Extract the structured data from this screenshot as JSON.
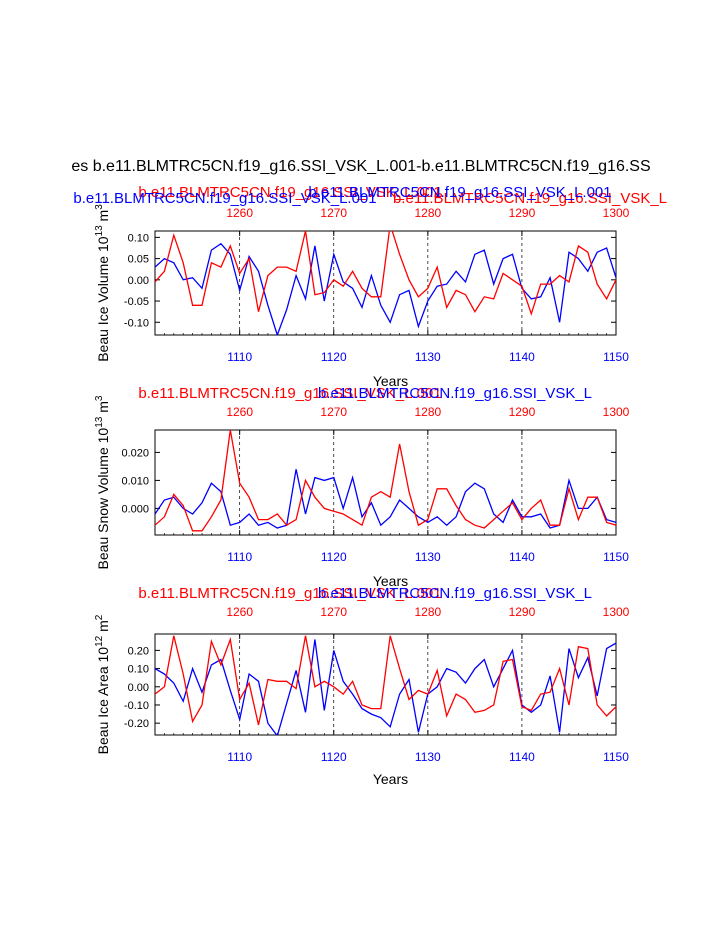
{
  "figure_title": "es b.e11.BLMTRC5CN.f19_g16.SSI_VSK_L.001-b.e11.BLMTRC5CN.f19_g16.SS",
  "colors": {
    "series_a": "#0000ff",
    "series_b": "#ff0000",
    "axis": "#000000",
    "grid": "#000000"
  },
  "chart_data": [
    {
      "type": "line",
      "title": "",
      "header_left": "b.e11.BLMTRC5CN.f19_g16.SSI_VSK_L.001",
      "header_right": "b.e11.BLMTRC5CN.f19_g16.SSI_VSK_L",
      "header_center_a": "b.e11.BLMTRC5CN.f19_g16.SSI_VSK_L.001",
      "header_center_b": "b.e11.BLMTRC5CN.f19_g16.SSI_VSK_L.001",
      "ylabel": "Beau Ice Volume 10",
      "ylabel_exp": "13",
      "ylabel_unit": " m",
      "ylabel_unit_exp": "3",
      "xlabel": "Years",
      "xlim": [
        1101,
        1150
      ],
      "x2lim": [
        1251,
        1300
      ],
      "ylim": [
        -0.13,
        0.115
      ],
      "xticks": [
        1110,
        1120,
        1130,
        1140,
        1150
      ],
      "xtick_labels": [
        "1110",
        "1120",
        "1130",
        "1140",
        "1150"
      ],
      "x2ticks": [
        1260,
        1270,
        1280,
        1290,
        1300
      ],
      "x2tick_labels": [
        "1260",
        "1270",
        "1280",
        "1290",
        "1300"
      ],
      "yticks": [
        0.1,
        0.05,
        0.0,
        -0.05,
        -0.1
      ],
      "ytick_labels": [
        "0.10",
        "0.05",
        "0.00",
        "-0.05",
        "-0.10"
      ],
      "gridlines_x": [
        1110,
        1120,
        1130,
        1140
      ],
      "series": [
        {
          "name": "b.e11.BLMTRC5CN.f19_g16.SSI_VSK_L.001",
          "color": "#0000ff",
          "axis": "bottom",
          "x": [
            1101,
            1102,
            1103,
            1104,
            1105,
            1106,
            1107,
            1108,
            1109,
            1110,
            1111,
            1112,
            1113,
            1114,
            1115,
            1116,
            1117,
            1118,
            1119,
            1120,
            1121,
            1122,
            1123,
            1124,
            1125,
            1126,
            1127,
            1128,
            1129,
            1130,
            1131,
            1132,
            1133,
            1134,
            1135,
            1136,
            1137,
            1138,
            1139,
            1140,
            1141,
            1142,
            1143,
            1144,
            1145,
            1146,
            1147,
            1148,
            1149,
            1150
          ],
          "values": [
            0.03,
            0.05,
            0.04,
            0.0,
            0.005,
            -0.02,
            0.07,
            0.085,
            0.06,
            -0.025,
            0.055,
            0.02,
            -0.06,
            -0.13,
            -0.07,
            0.01,
            -0.045,
            0.08,
            -0.05,
            0.06,
            -0.005,
            -0.02,
            -0.065,
            0.01,
            -0.06,
            -0.1,
            -0.035,
            -0.025,
            -0.11,
            -0.05,
            -0.015,
            -0.01,
            0.02,
            -0.005,
            0.06,
            0.07,
            -0.01,
            0.05,
            0.06,
            -0.02,
            -0.045,
            -0.04,
            0.005,
            -0.1,
            0.065,
            0.05,
            0.02,
            0.065,
            0.075,
            0.005
          ]
        },
        {
          "name": "b.e11.BLMTRC5CN.f19_g16.SSI_VSK_L",
          "color": "#ff0000",
          "axis": "top",
          "x": [
            1251,
            1252,
            1253,
            1254,
            1255,
            1256,
            1257,
            1258,
            1259,
            1260,
            1261,
            1262,
            1263,
            1264,
            1265,
            1266,
            1267,
            1268,
            1269,
            1270,
            1271,
            1272,
            1273,
            1274,
            1275,
            1276,
            1277,
            1278,
            1279,
            1280,
            1281,
            1282,
            1283,
            1284,
            1285,
            1286,
            1287,
            1288,
            1289,
            1290,
            1291,
            1292,
            1293,
            1294,
            1295,
            1296,
            1297,
            1298,
            1299,
            1300
          ],
          "values": [
            -0.005,
            0.02,
            0.105,
            0.04,
            -0.06,
            -0.06,
            0.04,
            0.03,
            0.08,
            0.015,
            0.05,
            -0.075,
            0.01,
            0.03,
            0.03,
            0.02,
            0.115,
            -0.035,
            -0.03,
            0.0,
            -0.015,
            0.02,
            -0.02,
            -0.04,
            -0.04,
            0.13,
            0.06,
            0.0,
            -0.04,
            -0.02,
            0.03,
            -0.065,
            -0.025,
            -0.035,
            -0.075,
            -0.04,
            -0.045,
            0.015,
            0.0,
            -0.015,
            -0.08,
            -0.01,
            -0.01,
            0.01,
            -0.005,
            0.08,
            0.065,
            -0.01,
            -0.045,
            0.0
          ]
        }
      ]
    },
    {
      "type": "line",
      "title": "",
      "header_left": "b.e11.BLMTRC5CN.f19_g16.SSI_VSK_L.001",
      "header_right": "b.e11.BLMTRC5CN.f19_g16.SSI_VSK_L",
      "header_center_a": "",
      "header_center_b": "",
      "ylabel": "Beau Snow Volume 10",
      "ylabel_exp": "13",
      "ylabel_unit": " m",
      "ylabel_unit_exp": "3",
      "xlabel": "Years",
      "xlim": [
        1101,
        1150
      ],
      "x2lim": [
        1251,
        1300
      ],
      "ylim": [
        -0.0095,
        0.028
      ],
      "xticks": [
        1110,
        1120,
        1130,
        1140,
        1150
      ],
      "xtick_labels": [
        "1110",
        "1120",
        "1130",
        "1140",
        "1150"
      ],
      "x2ticks": [
        1260,
        1270,
        1280,
        1290,
        1300
      ],
      "x2tick_labels": [
        "1260",
        "1270",
        "1280",
        "1290",
        "1300"
      ],
      "yticks": [
        0.02,
        0.01,
        0.0
      ],
      "ytick_labels": [
        "0.020",
        "0.010",
        "0.000"
      ],
      "gridlines_x": [
        1110,
        1120,
        1130,
        1140
      ],
      "series": [
        {
          "name": "b.e11.BLMTRC5CN.f19_g16.SSI_VSK_L.001",
          "color": "#0000ff",
          "axis": "bottom",
          "x": [
            1101,
            1102,
            1103,
            1104,
            1105,
            1106,
            1107,
            1108,
            1109,
            1110,
            1111,
            1112,
            1113,
            1114,
            1115,
            1116,
            1117,
            1118,
            1119,
            1120,
            1121,
            1122,
            1123,
            1124,
            1125,
            1126,
            1127,
            1128,
            1129,
            1130,
            1131,
            1132,
            1133,
            1134,
            1135,
            1136,
            1137,
            1138,
            1139,
            1140,
            1141,
            1142,
            1143,
            1144,
            1145,
            1146,
            1147,
            1148,
            1149,
            1150
          ],
          "values": [
            -0.002,
            0.003,
            0.004,
            0.0,
            -0.002,
            0.002,
            0.009,
            0.006,
            -0.006,
            -0.005,
            -0.002,
            -0.006,
            -0.005,
            -0.007,
            -0.006,
            0.014,
            -0.002,
            0.011,
            0.01,
            0.011,
            0.0,
            0.011,
            -0.003,
            0.002,
            -0.006,
            -0.003,
            0.003,
            0.0,
            -0.003,
            -0.005,
            -0.003,
            -0.006,
            -0.003,
            0.006,
            0.009,
            0.007,
            -0.002,
            -0.005,
            0.003,
            -0.003,
            -0.003,
            -0.002,
            -0.007,
            -0.006,
            0.01,
            0.0,
            0.0,
            0.004,
            -0.004,
            -0.005
          ]
        },
        {
          "name": "b.e11.BLMTRC5CN.f19_g16.SSI_VSK_L",
          "color": "#ff0000",
          "axis": "top",
          "x": [
            1251,
            1252,
            1253,
            1254,
            1255,
            1256,
            1257,
            1258,
            1259,
            1260,
            1261,
            1262,
            1263,
            1264,
            1265,
            1266,
            1267,
            1268,
            1269,
            1270,
            1271,
            1272,
            1273,
            1274,
            1275,
            1276,
            1277,
            1278,
            1279,
            1280,
            1281,
            1282,
            1283,
            1284,
            1285,
            1286,
            1287,
            1288,
            1289,
            1290,
            1291,
            1292,
            1293,
            1294,
            1295,
            1296,
            1297,
            1298,
            1299,
            1300
          ],
          "values": [
            -0.006,
            -0.003,
            0.005,
            0.001,
            -0.008,
            -0.008,
            -0.003,
            0.003,
            0.028,
            0.009,
            0.004,
            -0.004,
            -0.004,
            -0.002,
            -0.006,
            -0.004,
            0.01,
            0.004,
            0.0,
            -0.001,
            -0.002,
            -0.004,
            -0.006,
            0.004,
            0.006,
            0.004,
            0.023,
            0.006,
            -0.006,
            -0.004,
            0.007,
            0.007,
            0.001,
            -0.004,
            -0.006,
            -0.007,
            -0.004,
            -0.001,
            0.002,
            -0.004,
            0.0,
            0.003,
            -0.006,
            -0.006,
            0.007,
            -0.004,
            0.004,
            0.004,
            -0.005,
            -0.006
          ]
        }
      ]
    },
    {
      "type": "line",
      "title": "",
      "header_left": "b.e11.BLMTRC5CN.f19_g16.SSI_VSK_L.001",
      "header_right": "b.e11.BLMTRC5CN.f19_g16.SSI_VSK_L",
      "header_center_a": "",
      "header_center_b": "",
      "ylabel": "Beau Ice Area 10",
      "ylabel_exp": "12",
      "ylabel_unit": " m",
      "ylabel_unit_exp": "2",
      "xlabel": "Years",
      "xlim": [
        1101,
        1150
      ],
      "x2lim": [
        1251,
        1300
      ],
      "ylim": [
        -0.265,
        0.29
      ],
      "xticks": [
        1110,
        1120,
        1130,
        1140,
        1150
      ],
      "xtick_labels": [
        "1110",
        "1120",
        "1130",
        "1140",
        "1150"
      ],
      "x2ticks": [
        1260,
        1270,
        1280,
        1290,
        1300
      ],
      "x2tick_labels": [
        "1260",
        "1270",
        "1280",
        "1290",
        "1300"
      ],
      "yticks": [
        0.2,
        0.1,
        0.0,
        -0.1,
        -0.2
      ],
      "ytick_labels": [
        "0.20",
        "0.10",
        "0.00",
        "-0.10",
        "-0.20"
      ],
      "gridlines_x": [
        1110,
        1120,
        1130,
        1140
      ],
      "series": [
        {
          "name": "b.e11.BLMTRC5CN.f19_g16.SSI_VSK_L.001",
          "color": "#0000ff",
          "axis": "bottom",
          "x": [
            1101,
            1102,
            1103,
            1104,
            1105,
            1106,
            1107,
            1108,
            1109,
            1110,
            1111,
            1112,
            1113,
            1114,
            1115,
            1116,
            1117,
            1118,
            1119,
            1120,
            1121,
            1122,
            1123,
            1124,
            1125,
            1126,
            1127,
            1128,
            1129,
            1130,
            1131,
            1132,
            1133,
            1134,
            1135,
            1136,
            1137,
            1138,
            1139,
            1140,
            1141,
            1142,
            1143,
            1144,
            1145,
            1146,
            1147,
            1148,
            1149,
            1150
          ],
          "values": [
            0.1,
            0.07,
            0.02,
            -0.08,
            0.1,
            -0.03,
            0.12,
            0.15,
            -0.02,
            -0.18,
            0.07,
            0.03,
            -0.2,
            -0.27,
            -0.09,
            0.09,
            -0.14,
            0.26,
            -0.13,
            0.2,
            0.03,
            -0.04,
            -0.12,
            -0.15,
            -0.17,
            -0.22,
            -0.04,
            0.04,
            -0.25,
            -0.04,
            0.0,
            0.1,
            0.08,
            0.02,
            0.1,
            0.15,
            0.0,
            0.1,
            0.2,
            -0.1,
            -0.14,
            -0.1,
            0.06,
            -0.25,
            0.21,
            0.05,
            0.16,
            -0.05,
            0.21,
            0.24
          ]
        },
        {
          "name": "b.e11.BLMTRC5CN.f19_g16.SSI_VSK_L",
          "color": "#ff0000",
          "axis": "top",
          "x": [
            1251,
            1252,
            1253,
            1254,
            1255,
            1256,
            1257,
            1258,
            1259,
            1260,
            1261,
            1262,
            1263,
            1264,
            1265,
            1266,
            1267,
            1268,
            1269,
            1270,
            1271,
            1272,
            1273,
            1274,
            1275,
            1276,
            1277,
            1278,
            1279,
            1280,
            1281,
            1282,
            1283,
            1284,
            1285,
            1286,
            1287,
            1288,
            1289,
            1290,
            1291,
            1292,
            1293,
            1294,
            1295,
            1296,
            1297,
            1298,
            1299,
            1300
          ],
          "values": [
            -0.04,
            0.0,
            0.28,
            0.07,
            -0.19,
            -0.1,
            0.25,
            0.12,
            0.26,
            -0.07,
            0.02,
            -0.21,
            0.04,
            0.03,
            0.03,
            -0.01,
            0.28,
            0.0,
            0.03,
            0.0,
            -0.04,
            0.03,
            -0.1,
            -0.12,
            -0.12,
            0.28,
            0.1,
            -0.07,
            -0.02,
            -0.04,
            0.09,
            -0.16,
            -0.04,
            -0.07,
            -0.14,
            -0.13,
            -0.1,
            0.14,
            0.15,
            -0.11,
            -0.13,
            -0.04,
            -0.03,
            0.1,
            -0.1,
            0.22,
            0.21,
            -0.1,
            -0.16,
            -0.11
          ]
        }
      ]
    }
  ]
}
